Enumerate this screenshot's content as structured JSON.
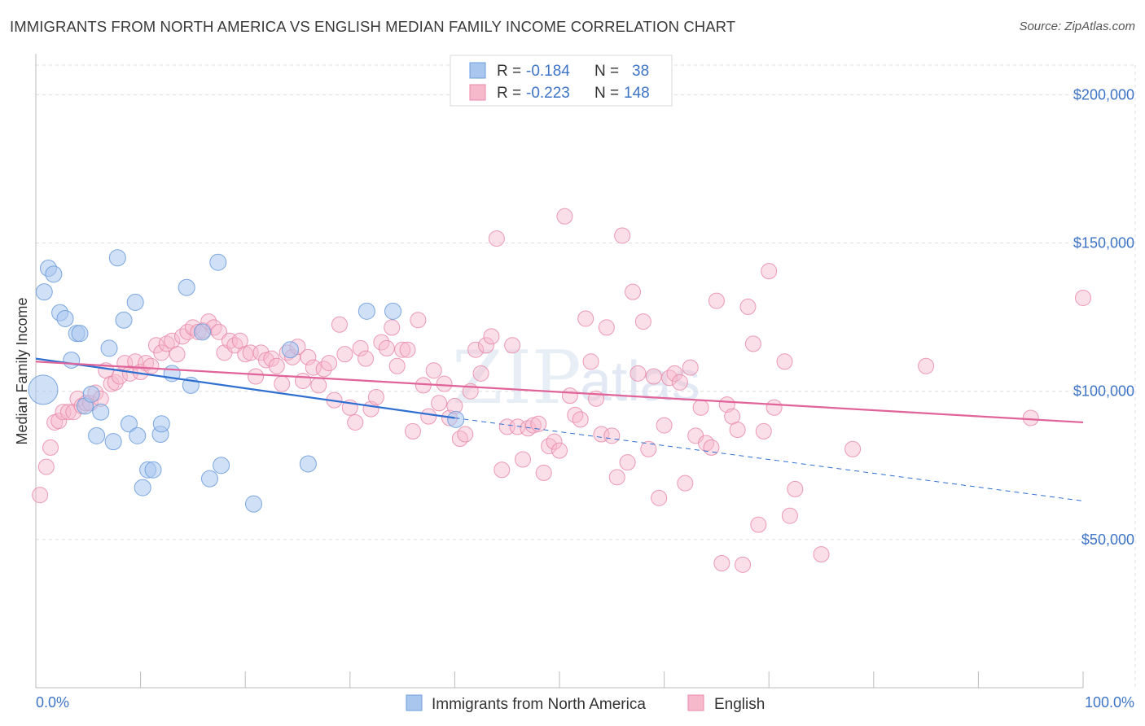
{
  "title": "IMMIGRANTS FROM NORTH AMERICA VS ENGLISH MEDIAN FAMILY INCOME CORRELATION CHART",
  "source": "Source: ZipAtlas.com",
  "watermark": {
    "zip": "ZIP",
    "atlas": "atlas"
  },
  "colors": {
    "blue_fill": "#a9c6ee",
    "blue_stroke": "#6f9fdc",
    "blue_line": "#2f6fd0",
    "pink_fill": "#f6b9cc",
    "pink_stroke": "#e88aa8",
    "pink_line": "#e0649a",
    "grid": "#dddddd",
    "axis_text": "#3d74c5"
  },
  "legend_top": {
    "rows": [
      {
        "r_label": "R =",
        "r_value": "-0.184",
        "n_label": "N =",
        "n_value": "38",
        "swatch": "blue"
      },
      {
        "r_label": "R =",
        "r_value": "-0.223",
        "n_label": "N =",
        "n_value": "148",
        "swatch": "pink"
      }
    ]
  },
  "legend_bottom": [
    {
      "label": "Immigrants from North America",
      "swatch": "blue"
    },
    {
      "label": "English",
      "swatch": "pink"
    }
  ],
  "chart_data": {
    "type": "scatter",
    "title": "IMMIGRANTS FROM NORTH AMERICA VS ENGLISH MEDIAN FAMILY INCOME CORRELATION CHART",
    "xlabel": "",
    "ylabel": "Median Family Income",
    "xlim": [
      0,
      100
    ],
    "ylim": [
      0,
      210000
    ],
    "x_tick_labels": [
      "0.0%",
      "100.0%"
    ],
    "y_ticks": [
      50000,
      100000,
      150000,
      200000
    ],
    "y_tick_labels": [
      "$50,000",
      "$100,000",
      "$150,000",
      "$200,000"
    ],
    "grid": true,
    "legend_position": "top-center",
    "series": [
      {
        "name": "Immigrants from North America",
        "color": "blue",
        "r": -0.184,
        "n": 38,
        "trend": {
          "x0": 0,
          "y0": 111000,
          "x1": 40,
          "y1": 91000,
          "dashed_to_x": 100,
          "dashed_to_y": 63000
        },
        "points": [
          [
            0.7,
            100500,
            18
          ],
          [
            0.8,
            133500,
            10
          ],
          [
            1.2,
            141500,
            10
          ],
          [
            1.7,
            139500,
            10
          ],
          [
            2.3,
            126500,
            10
          ],
          [
            2.8,
            124500,
            10
          ],
          [
            3.4,
            110500,
            10
          ],
          [
            3.9,
            119500,
            10
          ],
          [
            4.2,
            119500,
            10
          ],
          [
            4.7,
            95000,
            10
          ],
          [
            5.3,
            99000,
            10
          ],
          [
            5.8,
            85000,
            10
          ],
          [
            6.2,
            93000,
            10
          ],
          [
            7.0,
            114500,
            10
          ],
          [
            7.4,
            83000,
            10
          ],
          [
            7.8,
            145000,
            10
          ],
          [
            8.4,
            124000,
            10
          ],
          [
            8.9,
            89000,
            10
          ],
          [
            9.5,
            130000,
            10
          ],
          [
            9.7,
            85000,
            10
          ],
          [
            10.2,
            67500,
            10
          ],
          [
            10.7,
            73500,
            10
          ],
          [
            11.2,
            73500,
            10
          ],
          [
            11.9,
            85500,
            10
          ],
          [
            12.0,
            89000,
            10
          ],
          [
            13.0,
            106000,
            10
          ],
          [
            14.4,
            135000,
            10
          ],
          [
            14.8,
            102000,
            10
          ],
          [
            15.9,
            120000,
            10
          ],
          [
            16.6,
            70500,
            10
          ],
          [
            17.4,
            143500,
            10
          ],
          [
            17.7,
            75000,
            10
          ],
          [
            20.8,
            62000,
            10
          ],
          [
            24.3,
            114000,
            10
          ],
          [
            26.0,
            75500,
            10
          ],
          [
            31.6,
            127000,
            10
          ],
          [
            34.1,
            127000,
            10
          ],
          [
            40.1,
            90500,
            10
          ]
        ]
      },
      {
        "name": "English",
        "color": "pink",
        "r": -0.223,
        "n": 148,
        "trend": {
          "x0": 0,
          "y0": 110000,
          "x1": 100,
          "y1": 89500
        },
        "points": [
          [
            0.4,
            65000
          ],
          [
            1.0,
            74500
          ],
          [
            1.4,
            81000
          ],
          [
            1.8,
            89500
          ],
          [
            2.2,
            90000
          ],
          [
            2.6,
            93000
          ],
          [
            3.1,
            93000
          ],
          [
            3.6,
            93000
          ],
          [
            4.0,
            97500
          ],
          [
            4.4,
            95000
          ],
          [
            4.8,
            96000
          ],
          [
            5.2,
            96000
          ],
          [
            5.7,
            99500
          ],
          [
            6.2,
            97500
          ],
          [
            6.7,
            107000
          ],
          [
            7.2,
            102500
          ],
          [
            7.6,
            103000
          ],
          [
            8.0,
            105000
          ],
          [
            8.5,
            109500
          ],
          [
            9.0,
            106000
          ],
          [
            9.5,
            110000
          ],
          [
            10.0,
            106500
          ],
          [
            10.5,
            109500
          ],
          [
            11.0,
            108500
          ],
          [
            11.5,
            115500
          ],
          [
            12.0,
            113000
          ],
          [
            12.5,
            116000
          ],
          [
            13.0,
            117000
          ],
          [
            13.5,
            112500
          ],
          [
            14.0,
            118500
          ],
          [
            14.5,
            120000
          ],
          [
            15.0,
            121500
          ],
          [
            15.5,
            120000
          ],
          [
            16.0,
            120500
          ],
          [
            16.5,
            123500
          ],
          [
            17.0,
            121500
          ],
          [
            17.5,
            120000
          ],
          [
            18.0,
            113000
          ],
          [
            18.5,
            117000
          ],
          [
            19.0,
            115500
          ],
          [
            19.5,
            117000
          ],
          [
            20.0,
            112500
          ],
          [
            20.5,
            113000
          ],
          [
            21.0,
            105000
          ],
          [
            21.5,
            113000
          ],
          [
            22.0,
            110500
          ],
          [
            22.5,
            111000
          ],
          [
            23.0,
            108500
          ],
          [
            23.5,
            102500
          ],
          [
            24.0,
            113000
          ],
          [
            24.5,
            111500
          ],
          [
            25.0,
            115000
          ],
          [
            25.5,
            103500
          ],
          [
            26.0,
            111500
          ],
          [
            26.5,
            108000
          ],
          [
            27.0,
            102000
          ],
          [
            27.5,
            107500
          ],
          [
            28.0,
            109500
          ],
          [
            28.5,
            97000
          ],
          [
            29.0,
            122500
          ],
          [
            29.5,
            112500
          ],
          [
            30.0,
            94500
          ],
          [
            30.5,
            89500
          ],
          [
            31.0,
            114500
          ],
          [
            31.5,
            111000
          ],
          [
            32.0,
            94000
          ],
          [
            32.5,
            98000
          ],
          [
            33.0,
            116500
          ],
          [
            33.5,
            114500
          ],
          [
            34.0,
            121500
          ],
          [
            34.5,
            108500
          ],
          [
            35.0,
            114000
          ],
          [
            35.5,
            114000
          ],
          [
            36.0,
            86500
          ],
          [
            36.5,
            124000
          ],
          [
            37.0,
            102000
          ],
          [
            37.5,
            91500
          ],
          [
            38.0,
            107000
          ],
          [
            38.5,
            96000
          ],
          [
            39.0,
            102500
          ],
          [
            39.5,
            91000
          ],
          [
            40.0,
            95000
          ],
          [
            40.5,
            84000
          ],
          [
            41.0,
            85500
          ],
          [
            41.5,
            100000
          ],
          [
            42.0,
            114000
          ],
          [
            42.5,
            106000
          ],
          [
            43.0,
            115500
          ],
          [
            43.5,
            118500
          ],
          [
            44.0,
            151500
          ],
          [
            44.5,
            73500
          ],
          [
            45.0,
            88000
          ],
          [
            45.5,
            115500
          ],
          [
            46.0,
            88000
          ],
          [
            46.5,
            77000
          ],
          [
            47.0,
            87500
          ],
          [
            47.5,
            88500
          ],
          [
            48.0,
            89000
          ],
          [
            48.5,
            72500
          ],
          [
            49.0,
            81500
          ],
          [
            49.5,
            83000
          ],
          [
            50.0,
            80000
          ],
          [
            50.5,
            159000
          ],
          [
            51.0,
            98500
          ],
          [
            51.5,
            92000
          ],
          [
            52.0,
            90500
          ],
          [
            52.5,
            124500
          ],
          [
            53.0,
            110000
          ],
          [
            53.5,
            97500
          ],
          [
            54.0,
            85500
          ],
          [
            54.5,
            121500
          ],
          [
            55.0,
            85000
          ],
          [
            55.5,
            71000
          ],
          [
            56.0,
            152500
          ],
          [
            56.5,
            76000
          ],
          [
            57.0,
            133500
          ],
          [
            57.5,
            106000
          ],
          [
            58.0,
            123500
          ],
          [
            58.5,
            80500
          ],
          [
            59.0,
            105000
          ],
          [
            59.5,
            64000
          ],
          [
            60.0,
            88500
          ],
          [
            60.5,
            104500
          ],
          [
            61.0,
            106000
          ],
          [
            61.5,
            103000
          ],
          [
            62.0,
            69000
          ],
          [
            62.5,
            108000
          ],
          [
            63.0,
            85000
          ],
          [
            63.5,
            94500
          ],
          [
            64.0,
            82500
          ],
          [
            64.5,
            81000
          ],
          [
            65.0,
            130500
          ],
          [
            65.5,
            42000
          ],
          [
            66.0,
            95500
          ],
          [
            66.5,
            91500
          ],
          [
            67.0,
            87000
          ],
          [
            67.5,
            41500
          ],
          [
            68.0,
            128500
          ],
          [
            68.5,
            116000
          ],
          [
            69.0,
            55000
          ],
          [
            69.5,
            86500
          ],
          [
            70.0,
            140500
          ],
          [
            70.5,
            94500
          ],
          [
            71.5,
            110000
          ],
          [
            72.0,
            58000
          ],
          [
            72.5,
            67000
          ],
          [
            75.0,
            45000
          ],
          [
            78.0,
            80500
          ],
          [
            85.0,
            108500
          ],
          [
            95.0,
            91000
          ],
          [
            100.0,
            131500
          ]
        ]
      }
    ]
  }
}
